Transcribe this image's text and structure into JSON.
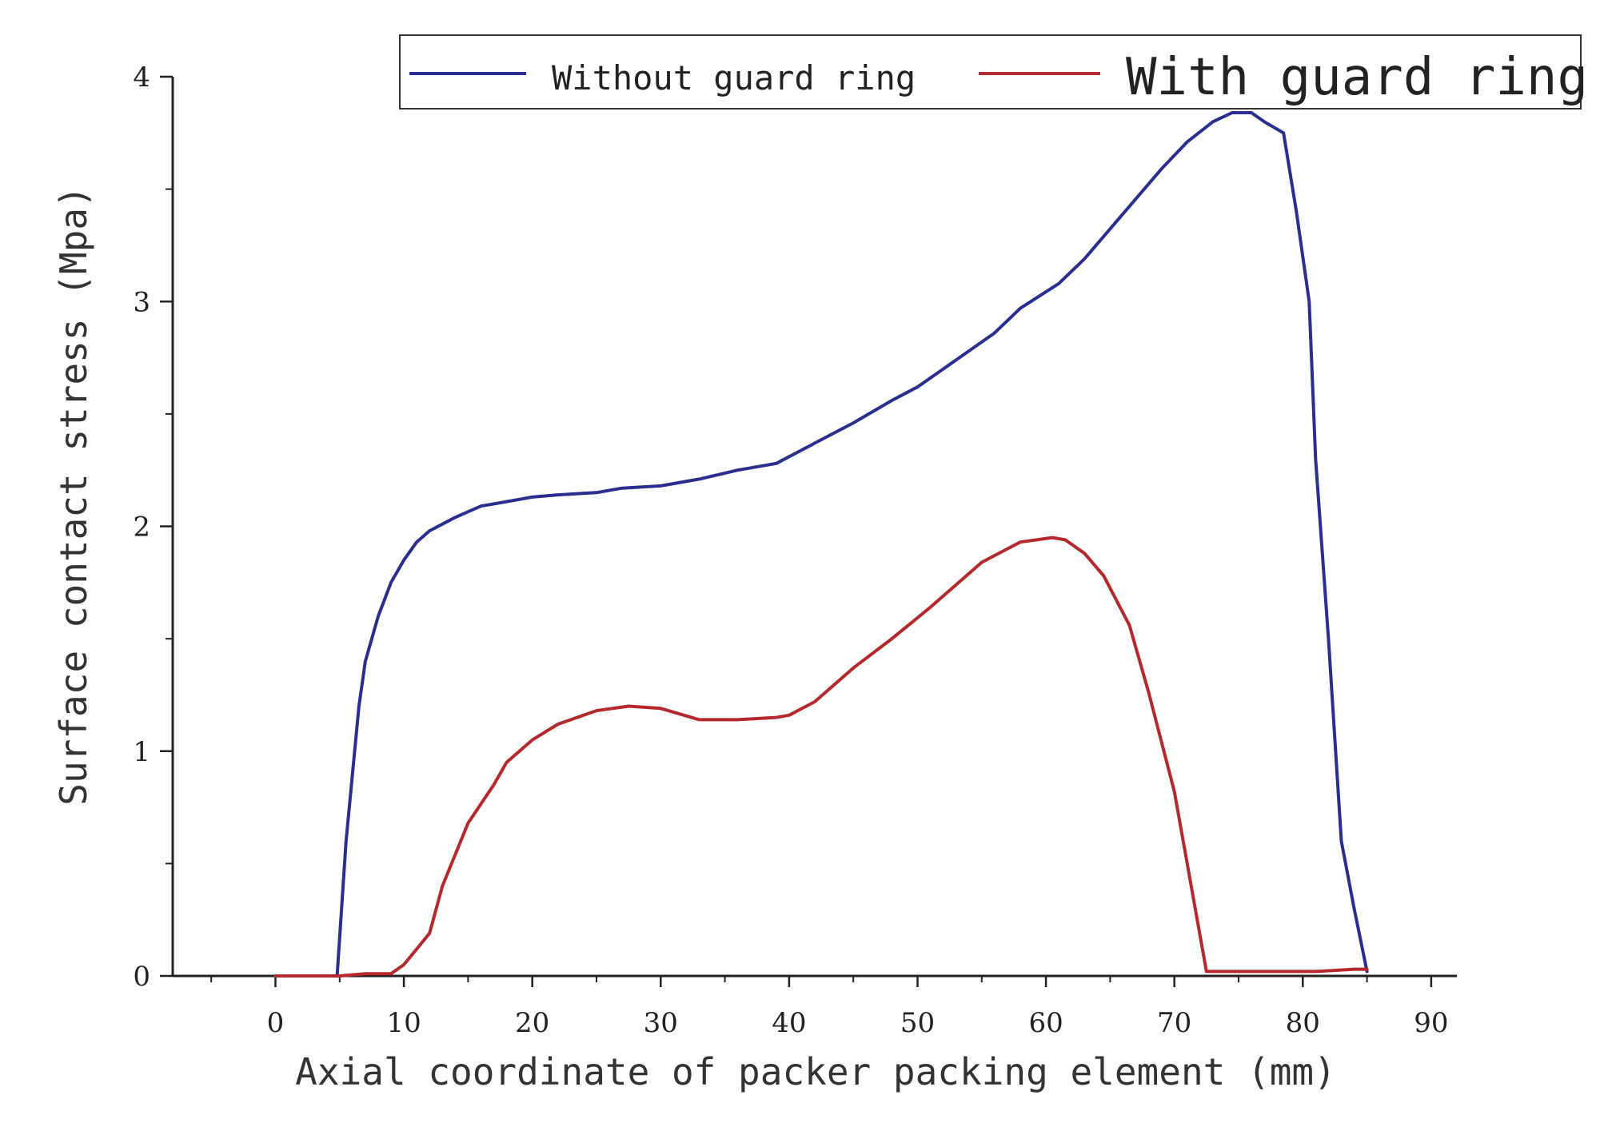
{
  "chart_data": {
    "type": "line",
    "title": "",
    "xlabel": "Axial coordinate of packer packing element (mm)",
    "ylabel": "Surface contact stress (Mpa)",
    "xlim": [
      -8,
      92
    ],
    "ylim": [
      0,
      4
    ],
    "xticks": [
      0,
      10,
      20,
      30,
      40,
      50,
      60,
      70,
      80,
      90
    ],
    "yticks": [
      0,
      1,
      2,
      3,
      4
    ],
    "legend_position": "top-right",
    "grid": false,
    "series": [
      {
        "name": "Without guard ring",
        "color": "#2a2f8f",
        "x": [
          0,
          4.8,
          5.5,
          6.5,
          7,
          8,
          9,
          10,
          11,
          12,
          14,
          16,
          18,
          20,
          22,
          25,
          27,
          30,
          33,
          36,
          39,
          42,
          45,
          48,
          50,
          53,
          56,
          58,
          61,
          63,
          66,
          69,
          71,
          73,
          74.5,
          76,
          77,
          78.5,
          79.5,
          80.5,
          81,
          82,
          83,
          84,
          85
        ],
        "values": [
          0,
          0,
          0.6,
          1.2,
          1.4,
          1.6,
          1.75,
          1.85,
          1.93,
          1.98,
          2.04,
          2.09,
          2.11,
          2.13,
          2.14,
          2.15,
          2.17,
          2.18,
          2.21,
          2.25,
          2.28,
          2.37,
          2.46,
          2.56,
          2.62,
          2.74,
          2.86,
          2.97,
          3.08,
          3.19,
          3.39,
          3.59,
          3.71,
          3.8,
          3.84,
          3.84,
          3.8,
          3.75,
          3.4,
          3.0,
          2.3,
          1.5,
          0.6,
          0.3,
          0.02
        ]
      },
      {
        "name": "With guard ring",
        "color": "#b5282c",
        "x": [
          0,
          5,
          7,
          9,
          10,
          12,
          13,
          15,
          17,
          18,
          20,
          22,
          25,
          27.5,
          30,
          33,
          36,
          39,
          40,
          42,
          45,
          48,
          51,
          53,
          55,
          57,
          58,
          60.5,
          61.5,
          63,
          64.5,
          66.5,
          68,
          70,
          72.5,
          75,
          78,
          81,
          84,
          85
        ],
        "values": [
          0,
          0,
          0.01,
          0.01,
          0.05,
          0.19,
          0.4,
          0.68,
          0.85,
          0.95,
          1.05,
          1.12,
          1.18,
          1.2,
          1.19,
          1.14,
          1.14,
          1.15,
          1.16,
          1.22,
          1.37,
          1.5,
          1.64,
          1.74,
          1.84,
          1.9,
          1.93,
          1.95,
          1.94,
          1.88,
          1.78,
          1.56,
          1.26,
          0.82,
          0.02,
          0.02,
          0.02,
          0.02,
          0.03,
          0.03
        ]
      }
    ]
  }
}
